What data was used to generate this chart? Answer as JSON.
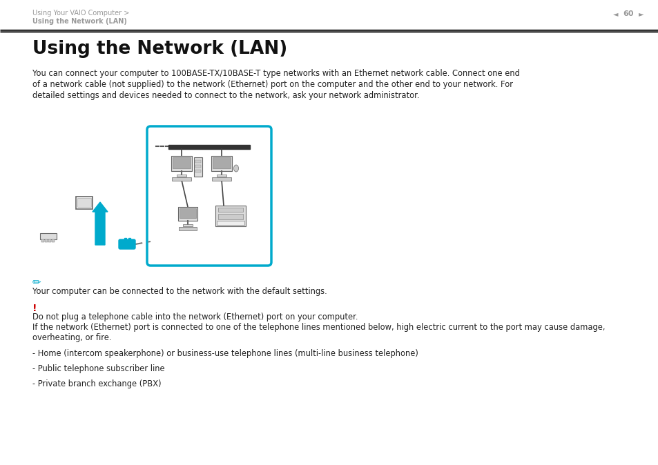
{
  "bg_color": "#ffffff",
  "header_text1": "Using Your VAIO Computer >",
  "header_text2": "Using the Network (LAN)",
  "page_number": "60",
  "title": "Using the Network (LAN)",
  "body_text": "You can connect your computer to 100BASE-TX/10BASE-T type networks with an Ethernet network cable. Connect one end\nof a network cable (not supplied) to the network (Ethernet) port on the computer and the other end to your network. For\ndetailed settings and devices needed to connect to the network, ask your network administrator.",
  "note_text": "Your computer can be connected to the network with the default settings.",
  "warning_text1": "Do not plug a telephone cable into the network (Ethernet) port on your computer.",
  "warning_text2": "If the network (Ethernet) port is connected to one of the telephone lines mentioned below, high electric current to the port may cause damage,\noverheating, or fire.",
  "bullet1": "- Home (intercom speakerphone) or business-use telephone lines (multi-line business telephone)",
  "bullet2": "- Public telephone subscriber line",
  "bullet3": "- Private branch exchange (PBX)",
  "cyan_color": "#00aacc",
  "red_color": "#cc0000",
  "gray_color": "#888888",
  "dark_gray": "#555555",
  "text_color": "#222222",
  "header_gray": "#999999",
  "line_color": "#333333",
  "device_fill": "#dddddd",
  "device_edge": "#666666"
}
